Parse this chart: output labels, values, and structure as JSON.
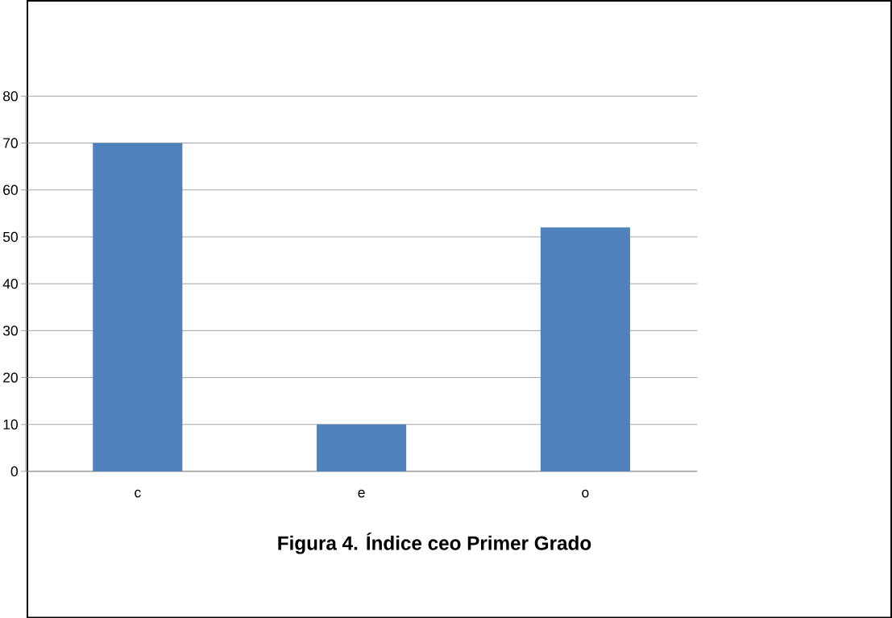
{
  "chart_data": {
    "type": "bar",
    "title": "Figura 4. Índice ceo Primer Grado",
    "categories": [
      "c",
      "e",
      "o"
    ],
    "values": [
      70,
      10,
      52
    ],
    "color": "#4f81bd",
    "ylim": [
      0,
      80
    ],
    "yticks": [
      0,
      10,
      20,
      30,
      40,
      50,
      60,
      70,
      80
    ],
    "grid": "y"
  }
}
